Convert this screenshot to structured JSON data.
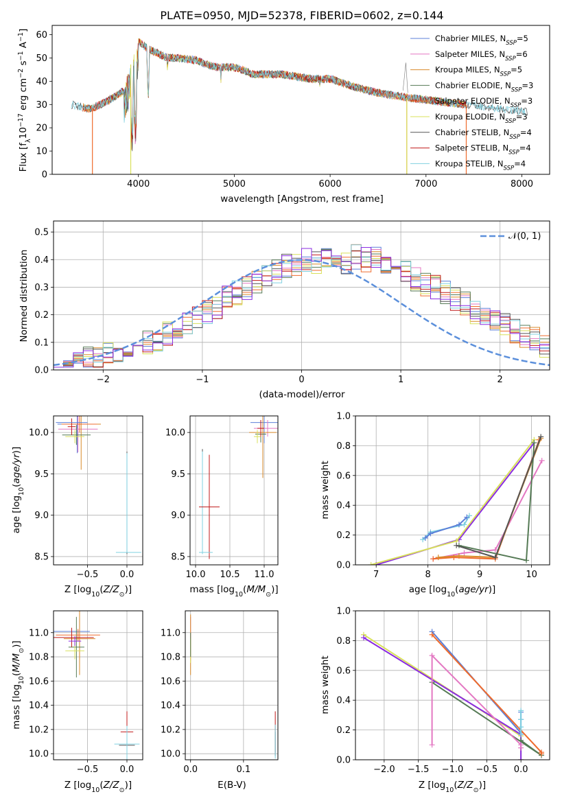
{
  "title": "PLATE=0950, MJD=52378, FIBERID=0602, z=0.144",
  "colors": {
    "Chabrier MILES": "#5b7fd8",
    "Salpeter MILES": "#e377c2",
    "Kroupa MILES": "#d98a28",
    "Chabrier ELODIE": "#557a55",
    "Salpeter ELODIE": "#ef6b2c",
    "Kroupa ELODIE": "#d8e05a",
    "Chabrier STELIB": "#555555",
    "Salpeter STELIB": "#c01818",
    "Kroupa STELIB": "#7fd0e0",
    "purple": "#8a2be2",
    "normal": "#5b8fdb"
  },
  "chart_data": [
    {
      "type": "line",
      "name": "spectrum",
      "title": "PLATE=0950, MJD=52378, FIBERID=0602, z=0.144",
      "xlabel": "wavelength [Angstrom, rest frame]",
      "ylabel": "Flux [f_λ10^-17 erg cm^-2 s^-1 A^-1]",
      "ylabel_parts": {
        "pre": "Flux [f",
        "sub": "λ",
        "mid": "10",
        "sup1": "−17",
        "mid2": " erg cm",
        "sup2": "−2",
        "mid3": " s",
        "sup3": "−1",
        "post": " A",
        "sup4": "−1",
        "end": "]"
      },
      "xlim": [
        3100,
        8290
      ],
      "ylim": [
        0,
        64
      ],
      "xticks": [
        4000,
        5000,
        6000,
        7000,
        8000
      ],
      "yticks": [
        0,
        10,
        20,
        30,
        40,
        50,
        60
      ],
      "legend_position": "upper right",
      "legend": [
        {
          "name": "Chabrier MILES",
          "label": "Chabrier MILES, N",
          "sub": "SSP",
          "n": "=5"
        },
        {
          "name": "Salpeter MILES",
          "label": "Salpeter MILES, N",
          "sub": "SSP",
          "n": "=6"
        },
        {
          "name": "Kroupa MILES",
          "label": "Kroupa MILES, N",
          "sub": "SSP",
          "n": "=5"
        },
        {
          "name": "Chabrier ELODIE",
          "label": "Chabrier ELODIE, N",
          "sub": "SSP",
          "n": "=3"
        },
        {
          "name": "Salpeter ELODIE",
          "label": "Salpeter ELODIE, N",
          "sub": "SSP",
          "n": "=3"
        },
        {
          "name": "Kroupa ELODIE",
          "label": "Kroupa ELODIE, N",
          "sub": "SSP",
          "n": "=3"
        },
        {
          "name": "Chabrier STELIB",
          "label": "Chabrier STELIB, N",
          "sub": "SSP",
          "n": "=4"
        },
        {
          "name": "Salpeter STELIB",
          "label": "Salpeter STELIB, N",
          "sub": "SSP",
          "n": "=4"
        },
        {
          "name": "Kroupa STELIB",
          "label": "Kroupa STELIB, N",
          "sub": "SSP",
          "n": "=4"
        }
      ],
      "continuum": [
        [
          3300,
          30
        ],
        [
          3500,
          28
        ],
        [
          3700,
          32
        ],
        [
          3850,
          36
        ],
        [
          3950,
          52
        ],
        [
          4000,
          57
        ],
        [
          4100,
          54
        ],
        [
          4200,
          52
        ],
        [
          4300,
          50
        ],
        [
          4400,
          50
        ],
        [
          4600,
          49
        ],
        [
          4800,
          46
        ],
        [
          5000,
          46
        ],
        [
          5200,
          43
        ],
        [
          5500,
          43
        ],
        [
          5800,
          41
        ],
        [
          6000,
          41
        ],
        [
          6300,
          37
        ],
        [
          6500,
          35
        ],
        [
          6800,
          33
        ],
        [
          7000,
          32
        ],
        [
          7200,
          31
        ],
        [
          7400,
          30
        ],
        [
          7600,
          29
        ],
        [
          7800,
          28
        ],
        [
          8000,
          27
        ],
        [
          8060,
          27
        ]
      ],
      "absorption_lines": [
        [
          3934,
          18
        ],
        [
          3969,
          22
        ],
        [
          4102,
          30
        ],
        [
          4304,
          42
        ],
        [
          4861,
          38
        ],
        [
          5175,
          38
        ],
        [
          5893,
          36
        ],
        [
          6563,
          36
        ]
      ],
      "drops": [
        {
          "series": "Salpeter ELODIE",
          "x": 3520
        },
        {
          "series": "Salpeter ELODIE",
          "x": 6800
        },
        {
          "series": "Salpeter ELODIE",
          "x": 7420
        },
        {
          "series": "Kroupa ELODIE",
          "x": 3920
        },
        {
          "series": "Kroupa ELODIE",
          "x": 6800
        }
      ]
    },
    {
      "type": "area",
      "name": "residual histogram",
      "xlabel": "(data-model)/error",
      "ylabel": "Normed distribution",
      "xlim": [
        -2.5,
        2.5
      ],
      "ylim": [
        0,
        0.54
      ],
      "xticks": [
        -2,
        -1,
        0,
        1,
        2
      ],
      "yticks": [
        0.0,
        0.1,
        0.2,
        0.3,
        0.4,
        0.5
      ],
      "legend": [
        {
          "name": "normal",
          "label": "𝒩(0, 1)"
        }
      ],
      "bin_width": 0.1,
      "hist_base": [
        0.02,
        0.025,
        0.03,
        0.04,
        0.05,
        0.06,
        0.065,
        0.08,
        0.09,
        0.1,
        0.11,
        0.13,
        0.15,
        0.17,
        0.19,
        0.21,
        0.23,
        0.26,
        0.28,
        0.3,
        0.32,
        0.34,
        0.36,
        0.38,
        0.38,
        0.4,
        0.39,
        0.41,
        0.4,
        0.39,
        0.41,
        0.4,
        0.4,
        0.37,
        0.36,
        0.35,
        0.33,
        0.31,
        0.3,
        0.28,
        0.26,
        0.24,
        0.21,
        0.2,
        0.18,
        0.16,
        0.14,
        0.12,
        0.11,
        0.09
      ]
    },
    {
      "type": "scatter",
      "name": "age vs Z",
      "xlabel": "Z [log10(Z/Z⊙)]",
      "ylabel": "age  [log10(age/yr)]",
      "xlim": [
        -0.93,
        0.2
      ],
      "ylim": [
        8.4,
        10.2
      ],
      "xticks": [
        -0.5,
        0.0
      ],
      "yticks": [
        8.5,
        9.0,
        9.5,
        10.0
      ]
    },
    {
      "type": "scatter",
      "name": "age vs mass",
      "xlabel": "mass [log10(M/M⊙)]",
      "ylim": [
        8.4,
        10.2
      ],
      "xlim": [
        9.92,
        11.2
      ],
      "xticks": [
        10.0,
        10.5,
        11.0
      ],
      "yticks": [
        8.5,
        9.0,
        9.5,
        10.0
      ]
    },
    {
      "type": "line",
      "name": "mass weight vs age",
      "xlabel": "age  [log10(age/yr)]",
      "ylabel": "mass weight",
      "xlim": [
        6.6,
        10.35
      ],
      "ylim": [
        0,
        1
      ],
      "xticks": [
        7,
        8,
        9,
        10
      ],
      "yticks": [
        0.0,
        0.2,
        0.4,
        0.6,
        0.8,
        1.0
      ],
      "series": [
        {
          "name": "Kroupa STELIB",
          "x": [
            7.9,
            8.05,
            8.7,
            8.8
          ],
          "y": [
            0.17,
            0.22,
            0.27,
            0.33
          ]
        },
        {
          "name": "Chabrier MILES",
          "x": [
            7.95,
            8.05,
            8.6,
            8.75
          ],
          "y": [
            0.18,
            0.21,
            0.27,
            0.32
          ]
        },
        {
          "name": "purple",
          "x": [
            7.0,
            8.6,
            10.05
          ],
          "y": [
            0.0,
            0.17,
            0.82
          ]
        },
        {
          "name": "Kroupa ELODIE",
          "x": [
            6.9,
            8.55,
            10.05
          ],
          "y": [
            0.0,
            0.16,
            0.84
          ]
        },
        {
          "name": "Salpeter MILES",
          "x": [
            8.1,
            8.7,
            9.3,
            10.2
          ],
          "y": [
            0.04,
            0.08,
            0.1,
            0.7
          ]
        },
        {
          "name": "Salpeter ELODIE",
          "x": [
            8.1,
            8.5,
            9.3,
            10.15
          ],
          "y": [
            0.04,
            0.05,
            0.04,
            0.84
          ]
        },
        {
          "name": "Kroupa MILES",
          "x": [
            8.2,
            8.6,
            9.3,
            10.18
          ],
          "y": [
            0.05,
            0.06,
            0.05,
            0.85
          ]
        },
        {
          "name": "Chabrier ELODIE",
          "x": [
            8.6,
            9.9,
            10.05
          ],
          "y": [
            0.13,
            0.03,
            0.82
          ]
        },
        {
          "name": "Chabrier STELIB",
          "x": [
            8.55,
            9.3,
            10.18
          ],
          "y": [
            0.13,
            0.05,
            0.86
          ]
        }
      ]
    },
    {
      "type": "scatter",
      "name": "mass vs Z",
      "xlabel": "Z [log10(Z/Z⊙)]",
      "ylabel": "mass [log10(M/M⊙)]",
      "xlim": [
        -0.93,
        0.2
      ],
      "ylim": [
        9.95,
        11.18
      ],
      "xticks": [
        -0.5,
        0.0
      ],
      "yticks": [
        10.0,
        10.2,
        10.4,
        10.6,
        10.8,
        11.0
      ]
    },
    {
      "type": "scatter",
      "name": "mass vs E(B-V)",
      "xlabel": "E(B-V)",
      "xlim": [
        -0.01,
        0.165
      ],
      "ylim": [
        9.95,
        11.18
      ],
      "xticks": [
        0.0,
        0.1
      ],
      "yticks": [
        10.0,
        10.2,
        10.4,
        10.6,
        10.8,
        11.0
      ]
    },
    {
      "type": "line",
      "name": "mass weight vs Z",
      "xlabel": "Z [log10(Z/Z⊙)]",
      "ylabel": "mass weight",
      "xlim": [
        -2.42,
        0.42
      ],
      "ylim": [
        0,
        1
      ],
      "xticks": [
        -2.0,
        -1.5,
        -1.0,
        -0.5,
        0.0
      ],
      "yticks": [
        0.0,
        0.2,
        0.4,
        0.6,
        0.8,
        1.0
      ],
      "series": [
        {
          "name": "Kroupa ELODIE",
          "x": [
            -2.3,
            0.0,
            0.0
          ],
          "y": [
            0.84,
            0.16,
            0.0
          ]
        },
        {
          "name": "purple",
          "x": [
            -2.3,
            0.0,
            0.0
          ],
          "y": [
            0.82,
            0.17,
            0.0
          ]
        },
        {
          "name": "Chabrier ELODIE",
          "x": [
            -1.3,
            0.3,
            0.0
          ],
          "y": [
            0.52,
            0.03,
            0.13
          ]
        },
        {
          "name": "Chabrier MILES",
          "x": [
            -1.3,
            0.0,
            0.0,
            0.0
          ],
          "y": [
            0.86,
            0.18,
            0.27,
            0.32
          ]
        },
        {
          "name": "Salpeter ELODIE",
          "x": [
            -1.3,
            0.3,
            0.3
          ],
          "y": [
            0.84,
            0.05,
            0.04
          ]
        },
        {
          "name": "Salpeter MILES",
          "x": [
            -1.3,
            -1.3,
            0.0,
            0.0
          ],
          "y": [
            0.1,
            0.7,
            0.1,
            0.08
          ]
        },
        {
          "name": "Kroupa STELIB",
          "x": [
            0.0,
            0.0,
            0.0,
            0.0
          ],
          "y": [
            0.17,
            0.22,
            0.27,
            0.33
          ]
        }
      ]
    }
  ]
}
